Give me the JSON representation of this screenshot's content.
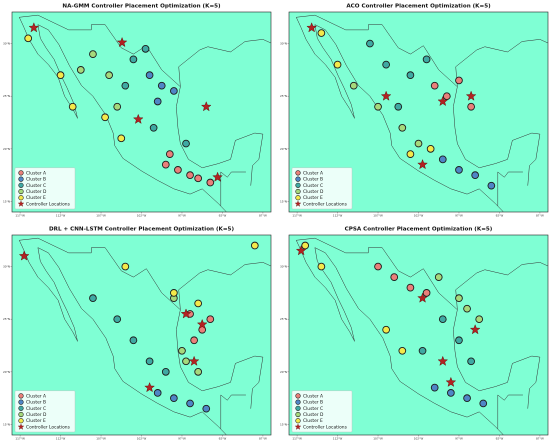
{
  "chart_data": [
    {
      "type": "scatter",
      "title": "NA-GMM Controller Placement Optimization (K=5)",
      "xlim": [
        -118,
        -86
      ],
      "ylim": [
        14,
        33
      ],
      "legend": "lower left",
      "background": "#7fffd4",
      "xticks": [
        {
          "value": -117,
          "label": "117°W"
        },
        {
          "value": -112,
          "label": "112°W"
        },
        {
          "value": -107,
          "label": "107°W"
        },
        {
          "value": -102,
          "label": "102°W"
        },
        {
          "value": -97,
          "label": "97°W"
        },
        {
          "value": -92,
          "label": "92°W"
        },
        {
          "value": -87,
          "label": "87°W"
        }
      ],
      "yticks": [
        {
          "value": 15,
          "label": "15°N"
        },
        {
          "value": 20,
          "label": "20°N"
        },
        {
          "value": 25,
          "label": "25°N"
        },
        {
          "value": 30,
          "label": "30°N"
        }
      ],
      "series": [
        {
          "name": "Cluster A",
          "color": "#e9807a",
          "x": [
            -99,
            -97.5,
            -96,
            -95,
            -98.5,
            -93.5
          ],
          "y": [
            18.5,
            18,
            17.5,
            17.2,
            19.5,
            16.8
          ]
        },
        {
          "name": "Cluster B",
          "color": "#4f86c6",
          "x": [
            -101,
            -99.5,
            -100,
            -98
          ],
          "y": [
            27,
            26,
            24.5,
            25.5
          ]
        },
        {
          "name": "Cluster C",
          "color": "#3fa9a3",
          "x": [
            -103,
            -101.5,
            -104,
            -100.5,
            -96.5
          ],
          "y": [
            28.5,
            29.5,
            26,
            22,
            20.5
          ]
        },
        {
          "name": "Cluster D",
          "color": "#a6d97c",
          "x": [
            -108,
            -106,
            -109.5,
            -105
          ],
          "y": [
            29,
            27,
            27.5,
            24
          ]
        },
        {
          "name": "Cluster E",
          "color": "#f4e94a",
          "x": [
            -112,
            -110.5,
            -106.5,
            -104.5,
            -116
          ],
          "y": [
            27,
            24,
            23,
            21,
            30.5
          ]
        },
        {
          "name": "Controller Locations",
          "color": "#b22222",
          "marker": "star",
          "x": [
            -115.3,
            -104.4,
            -102.4,
            -94,
            -92.6
          ],
          "y": [
            31.5,
            30.1,
            22.8,
            24,
            17.3
          ]
        }
      ]
    },
    {
      "type": "scatter",
      "title": "ACO Controller Placement Optimization (K=5)",
      "xlim": [
        -118,
        -86
      ],
      "ylim": [
        14,
        33
      ],
      "legend": "lower left",
      "background": "#7fffd4",
      "xticks": [
        {
          "value": -117,
          "label": "117°W"
        },
        {
          "value": -112,
          "label": "112°W"
        },
        {
          "value": -107,
          "label": "107°W"
        },
        {
          "value": -102,
          "label": "102°W"
        },
        {
          "value": -97,
          "label": "97°W"
        },
        {
          "value": -92,
          "label": "92°W"
        },
        {
          "value": -87,
          "label": "87°W"
        }
      ],
      "yticks": [
        {
          "value": 15,
          "label": "15°N"
        },
        {
          "value": 20,
          "label": "20°N"
        },
        {
          "value": 25,
          "label": "25°N"
        },
        {
          "value": 30,
          "label": "30°N"
        }
      ],
      "series": [
        {
          "name": "Cluster A",
          "color": "#e9807a",
          "x": [
            -100,
            -98.5,
            -97,
            -95.5
          ],
          "y": [
            26,
            25,
            26.5,
            24
          ]
        },
        {
          "name": "Cluster B",
          "color": "#4f86c6",
          "x": [
            -99,
            -97,
            -95,
            -93
          ],
          "y": [
            19,
            18,
            17.5,
            16.5
          ]
        },
        {
          "name": "Cluster C",
          "color": "#3fa9a3",
          "x": [
            -108,
            -106,
            -103,
            -101,
            -104.5
          ],
          "y": [
            30,
            28,
            27,
            28.5,
            24
          ]
        },
        {
          "name": "Cluster D",
          "color": "#a6d97c",
          "x": [
            -110,
            -107,
            -104,
            -102
          ],
          "y": [
            26,
            24,
            22,
            20.5
          ]
        },
        {
          "name": "Cluster E",
          "color": "#f4e94a",
          "x": [
            -114,
            -112,
            -103,
            -100.5
          ],
          "y": [
            31,
            28,
            19.5,
            20
          ]
        },
        {
          "name": "Controller Locations",
          "color": "#b22222",
          "marker": "star",
          "x": [
            -115.2,
            -106,
            -99,
            -95.5,
            -101.5
          ],
          "y": [
            31.5,
            25,
            24.5,
            25,
            18.5
          ]
        }
      ]
    },
    {
      "type": "scatter",
      "title": "DRL + CNN-LSTM Controller Placement Optimization (K=5)",
      "xlim": [
        -118,
        -86
      ],
      "ylim": [
        14,
        33
      ],
      "legend": "lower left",
      "background": "#7fffd4",
      "xticks": [
        {
          "value": -117,
          "label": "117°W"
        },
        {
          "value": -112,
          "label": "112°W"
        },
        {
          "value": -107,
          "label": "107°W"
        },
        {
          "value": -102,
          "label": "102°W"
        },
        {
          "value": -97,
          "label": "97°W"
        },
        {
          "value": -92,
          "label": "92°W"
        },
        {
          "value": -87,
          "label": "87°W"
        }
      ],
      "yticks": [
        {
          "value": 15,
          "label": "15°N"
        },
        {
          "value": 20,
          "label": "20°N"
        },
        {
          "value": 25,
          "label": "25°N"
        },
        {
          "value": 30,
          "label": "30°N"
        }
      ],
      "series": [
        {
          "name": "Cluster A",
          "color": "#e9807a",
          "x": [
            -96,
            -94.5,
            -95.5,
            -93.5
          ],
          "y": [
            25.5,
            24,
            23,
            25
          ]
        },
        {
          "name": "Cluster B",
          "color": "#4f86c6",
          "x": [
            -100,
            -98,
            -96,
            -94
          ],
          "y": [
            18,
            17.5,
            17,
            16.5
          ]
        },
        {
          "name": "Cluster C",
          "color": "#3fa9a3",
          "x": [
            -108,
            -105,
            -103,
            -101,
            -99
          ],
          "y": [
            27,
            25,
            23,
            21,
            20
          ]
        },
        {
          "name": "Cluster D",
          "color": "#a6d97c",
          "x": [
            -97,
            -96.5,
            -95,
            -98
          ],
          "y": [
            22,
            21,
            20,
            27
          ]
        },
        {
          "name": "Cluster E",
          "color": "#f4e94a",
          "x": [
            -104,
            -98,
            -95,
            -88
          ],
          "y": [
            30,
            27.5,
            26.5,
            32
          ]
        },
        {
          "name": "Controller Locations",
          "color": "#b22222",
          "marker": "star",
          "x": [
            -116.5,
            -94.5,
            -101,
            -95.5,
            -96.5
          ],
          "y": [
            31,
            24.5,
            18.5,
            21,
            25.5
          ]
        }
      ]
    },
    {
      "type": "scatter",
      "title": "CPSA Controller Placement Optimization (K=5)",
      "xlim": [
        -118,
        -86
      ],
      "ylim": [
        14,
        33
      ],
      "legend": "lower left",
      "background": "#7fffd4",
      "xticks": [
        {
          "value": -117,
          "label": "117°W"
        },
        {
          "value": -112,
          "label": "112°W"
        },
        {
          "value": -107,
          "label": "107°W"
        },
        {
          "value": -102,
          "label": "102°W"
        },
        {
          "value": -97,
          "label": "97°W"
        },
        {
          "value": -92,
          "label": "92°W"
        },
        {
          "value": -87,
          "label": "87°W"
        }
      ],
      "yticks": [
        {
          "value": 15,
          "label": "15°N"
        },
        {
          "value": 20,
          "label": "20°N"
        },
        {
          "value": 25,
          "label": "25°N"
        },
        {
          "value": 30,
          "label": "30°N"
        }
      ],
      "series": [
        {
          "name": "Cluster A",
          "color": "#e9807a",
          "x": [
            -107,
            -105,
            -103,
            -101
          ],
          "y": [
            30,
            29,
            28,
            27.5
          ]
        },
        {
          "name": "Cluster B",
          "color": "#4f86c6",
          "x": [
            -100,
            -98,
            -96,
            -94
          ],
          "y": [
            18.5,
            18,
            17.5,
            17
          ]
        },
        {
          "name": "Cluster C",
          "color": "#3fa9a3",
          "x": [
            -99,
            -97,
            -95.5,
            -101.5
          ],
          "y": [
            25,
            23,
            21,
            22
          ]
        },
        {
          "name": "Cluster D",
          "color": "#a6d97c",
          "x": [
            -97,
            -96,
            -94.5,
            -99.5
          ],
          "y": [
            27,
            26,
            25,
            29
          ]
        },
        {
          "name": "Cluster E",
          "color": "#f4e94a",
          "x": [
            -116,
            -114,
            -106,
            -104
          ],
          "y": [
            32,
            30,
            24,
            22
          ]
        },
        {
          "name": "Controller Locations",
          "color": "#b22222",
          "marker": "star",
          "x": [
            -116.5,
            -101.5,
            -95,
            -99,
            -98
          ],
          "y": [
            31.5,
            27,
            24,
            21,
            19
          ]
        }
      ]
    }
  ]
}
